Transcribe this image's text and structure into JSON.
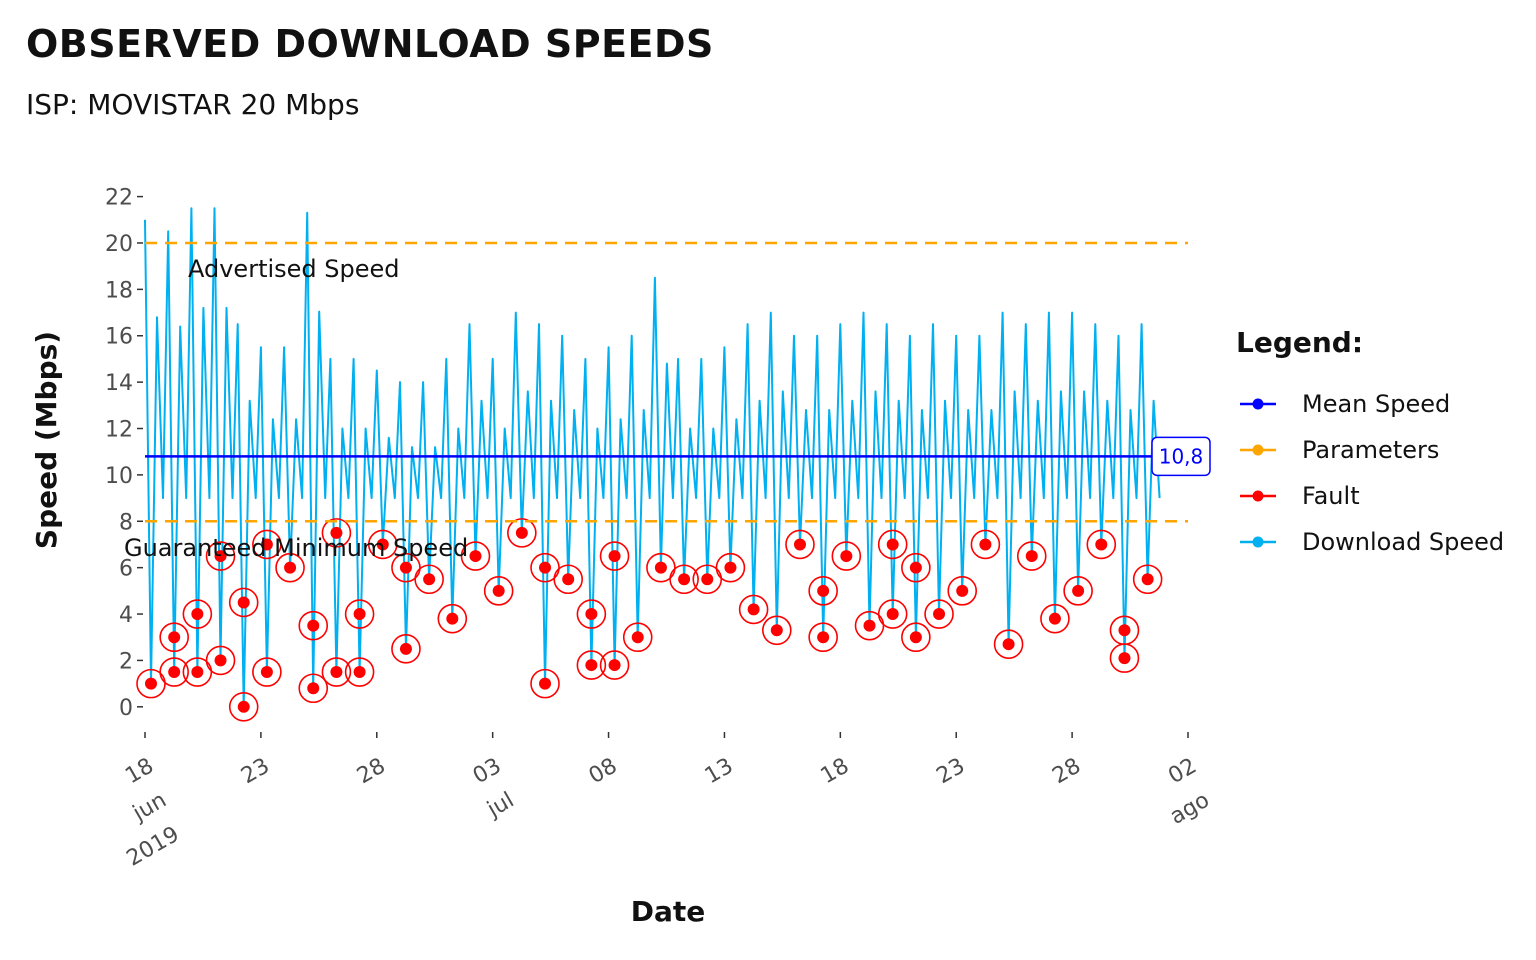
{
  "header": {
    "title": "OBSERVED DOWNLOAD SPEEDS",
    "subtitle": "ISP: MOVISTAR 20 Mbps"
  },
  "chart_data": {
    "type": "line",
    "title": "OBSERVED DOWNLOAD SPEEDS",
    "subtitle": "ISP: MOVISTAR 20 Mbps",
    "xlabel": "Date",
    "ylabel": "Speed (Mbps)",
    "ylim": [
      -1,
      22.5
    ],
    "xlim": [
      "2019-06-18",
      "2019-08-02"
    ],
    "grid": false,
    "legend_position": "right",
    "y_ticks": [
      "0",
      "2",
      "4",
      "6",
      "8",
      "10",
      "12",
      "14",
      "16",
      "18",
      "20",
      "22"
    ],
    "x_ticks": [
      {
        "date": "2019-06-18",
        "label": "18",
        "sub": [
          "jun",
          "2019"
        ]
      },
      {
        "date": "2019-06-23",
        "label": "23",
        "sub": []
      },
      {
        "date": "2019-06-28",
        "label": "28",
        "sub": []
      },
      {
        "date": "2019-07-03",
        "label": "03",
        "sub": [
          "jul"
        ]
      },
      {
        "date": "2019-07-08",
        "label": "08",
        "sub": []
      },
      {
        "date": "2019-07-13",
        "label": "13",
        "sub": []
      },
      {
        "date": "2019-07-18",
        "label": "18",
        "sub": []
      },
      {
        "date": "2019-07-23",
        "label": "23",
        "sub": []
      },
      {
        "date": "2019-07-28",
        "label": "28",
        "sub": []
      },
      {
        "date": "2019-08-02",
        "label": "02",
        "sub": [
          "ago"
        ]
      }
    ],
    "advertised_speed": 20,
    "guaranteed_minimum_speed": 8,
    "mean_speed": 10.8,
    "mean_label": "10,8",
    "annotations": {
      "advertised": "Advertised Speed",
      "guaranteed": "Guaranteed Minimum Speed"
    },
    "series": [
      {
        "name": "Download Speed",
        "color": "#00b0f0",
        "x": [
          "2019-06-18",
          "2019-06-19",
          "2019-06-20",
          "2019-06-21",
          "2019-06-22",
          "2019-06-23",
          "2019-06-24",
          "2019-06-25",
          "2019-06-26",
          "2019-06-27",
          "2019-06-28",
          "2019-06-29",
          "2019-06-30",
          "2019-07-01",
          "2019-07-02",
          "2019-07-03",
          "2019-07-04",
          "2019-07-05",
          "2019-07-06",
          "2019-07-07",
          "2019-07-08",
          "2019-07-09",
          "2019-07-10",
          "2019-07-11",
          "2019-07-12",
          "2019-07-13",
          "2019-07-14",
          "2019-07-15",
          "2019-07-16",
          "2019-07-17",
          "2019-07-18",
          "2019-07-19",
          "2019-07-20",
          "2019-07-21",
          "2019-07-22",
          "2019-07-23",
          "2019-07-24",
          "2019-07-25",
          "2019-07-26",
          "2019-07-27",
          "2019-07-28",
          "2019-07-29",
          "2019-07-30",
          "2019-07-31"
        ],
        "values": [
          21.0,
          20.5,
          21.5,
          21.5,
          16.5,
          15.5,
          15.5,
          21.3,
          15.0,
          15.0,
          14.5,
          14.0,
          14.0,
          15.0,
          16.5,
          15.0,
          17.0,
          16.5,
          16.0,
          15.0,
          15.5,
          16.0,
          18.5,
          15.0,
          15.0,
          15.5,
          16.5,
          17.0,
          16.0,
          16.0,
          16.5,
          17.0,
          16.5,
          16.0,
          16.5,
          16.0,
          16.0,
          17.0,
          16.5,
          17.0,
          17.0,
          16.5,
          16.0,
          16.5
        ]
      },
      {
        "name": "Fault",
        "color": "#ff0000",
        "x": [
          "2019-06-18",
          "2019-06-19",
          "2019-06-19",
          "2019-06-20",
          "2019-06-20",
          "2019-06-21",
          "2019-06-21",
          "2019-06-22",
          "2019-06-22",
          "2019-06-23",
          "2019-06-23",
          "2019-06-24",
          "2019-06-25",
          "2019-06-25",
          "2019-06-26",
          "2019-06-26",
          "2019-06-27",
          "2019-06-27",
          "2019-06-28",
          "2019-06-29",
          "2019-06-29",
          "2019-06-30",
          "2019-07-01",
          "2019-07-02",
          "2019-07-03",
          "2019-07-04",
          "2019-07-05",
          "2019-07-05",
          "2019-07-06",
          "2019-07-07",
          "2019-07-07",
          "2019-07-08",
          "2019-07-08",
          "2019-07-09",
          "2019-07-10",
          "2019-07-11",
          "2019-07-12",
          "2019-07-13",
          "2019-07-14",
          "2019-07-15",
          "2019-07-16",
          "2019-07-17",
          "2019-07-17",
          "2019-07-18",
          "2019-07-19",
          "2019-07-20",
          "2019-07-20",
          "2019-07-21",
          "2019-07-21",
          "2019-07-22",
          "2019-07-23",
          "2019-07-24",
          "2019-07-25",
          "2019-07-26",
          "2019-07-27",
          "2019-07-28",
          "2019-07-29",
          "2019-07-30",
          "2019-07-30",
          "2019-07-31"
        ],
        "values": [
          1.0,
          1.5,
          3.0,
          1.5,
          4.0,
          2.0,
          6.5,
          0.0,
          4.5,
          1.5,
          7.0,
          6.0,
          0.8,
          3.5,
          1.5,
          7.5,
          1.5,
          4.0,
          7.0,
          2.5,
          6.0,
          5.5,
          3.8,
          6.5,
          5.0,
          7.5,
          1.0,
          6.0,
          5.5,
          1.8,
          4.0,
          6.5,
          1.8,
          3.0,
          6.0,
          5.5,
          5.5,
          6.0,
          4.2,
          3.3,
          7.0,
          3.0,
          5.0,
          6.5,
          3.5,
          7.0,
          4.0,
          6.0,
          3.0,
          4.0,
          5.0,
          7.0,
          2.7,
          6.5,
          3.8,
          5.0,
          7.0,
          3.3,
          2.1,
          5.5
        ]
      }
    ],
    "legend": {
      "title": "Legend:",
      "items": [
        {
          "label": "Mean Speed",
          "color": "#0000ff"
        },
        {
          "label": "Parameters",
          "color": "#ffa500"
        },
        {
          "label": "Fault",
          "color": "#ff0000"
        },
        {
          "label": "Download Speed",
          "color": "#00b0f0"
        }
      ]
    }
  }
}
